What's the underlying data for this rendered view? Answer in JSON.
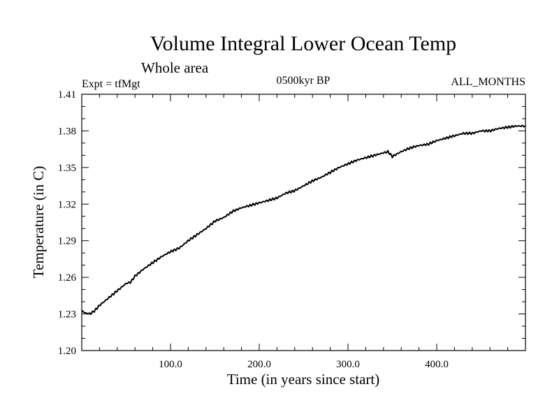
{
  "chart_data": {
    "type": "line",
    "title": "Volume Integral Lower Ocean Temp",
    "subtitle": "Whole area",
    "left_label": "Expt = tfMgt",
    "center_label": "0500kyr BP",
    "right_label": "ALL_MONTHS",
    "xlabel": "Time (in years since start)",
    "ylabel": "Temperature (in C)",
    "xlim": [
      0,
      500
    ],
    "ylim": [
      1.2,
      1.41
    ],
    "x_ticks": [
      100,
      200,
      300,
      400
    ],
    "x_tick_labels": [
      "100.0",
      "200.0",
      "300.0",
      "400.0"
    ],
    "y_ticks": [
      1.2,
      1.23,
      1.26,
      1.29,
      1.32,
      1.35,
      1.38,
      1.41
    ],
    "y_tick_labels": [
      "1.20",
      "1.23",
      "1.26",
      "1.29",
      "1.32",
      "1.35",
      "1.38",
      "1.41"
    ],
    "grid": false,
    "line_color": "#000000",
    "series": [
      {
        "x": [
          0,
          5,
          10,
          15,
          20,
          25,
          30,
          40,
          50,
          55,
          60,
          70,
          80,
          90,
          100,
          110,
          120,
          130,
          140,
          150,
          160,
          170,
          180,
          190,
          200,
          210,
          220,
          230,
          240,
          250,
          260,
          270,
          280,
          290,
          300,
          310,
          320,
          330,
          340,
          345,
          350,
          360,
          370,
          380,
          390,
          400,
          410,
          420,
          430,
          440,
          450,
          460,
          470,
          480,
          490,
          500
        ],
        "y": [
          1.2325,
          1.2305,
          1.2302,
          1.233,
          1.237,
          1.24,
          1.243,
          1.249,
          1.255,
          1.256,
          1.261,
          1.267,
          1.272,
          1.277,
          1.281,
          1.284,
          1.29,
          1.295,
          1.3,
          1.306,
          1.309,
          1.314,
          1.317,
          1.319,
          1.321,
          1.323,
          1.325,
          1.329,
          1.331,
          1.335,
          1.339,
          1.342,
          1.346,
          1.35,
          1.353,
          1.356,
          1.358,
          1.36,
          1.362,
          1.363,
          1.359,
          1.363,
          1.366,
          1.368,
          1.369,
          1.372,
          1.374,
          1.376,
          1.378,
          1.378,
          1.38,
          1.38,
          1.382,
          1.383,
          1.384,
          1.384
        ]
      }
    ]
  }
}
